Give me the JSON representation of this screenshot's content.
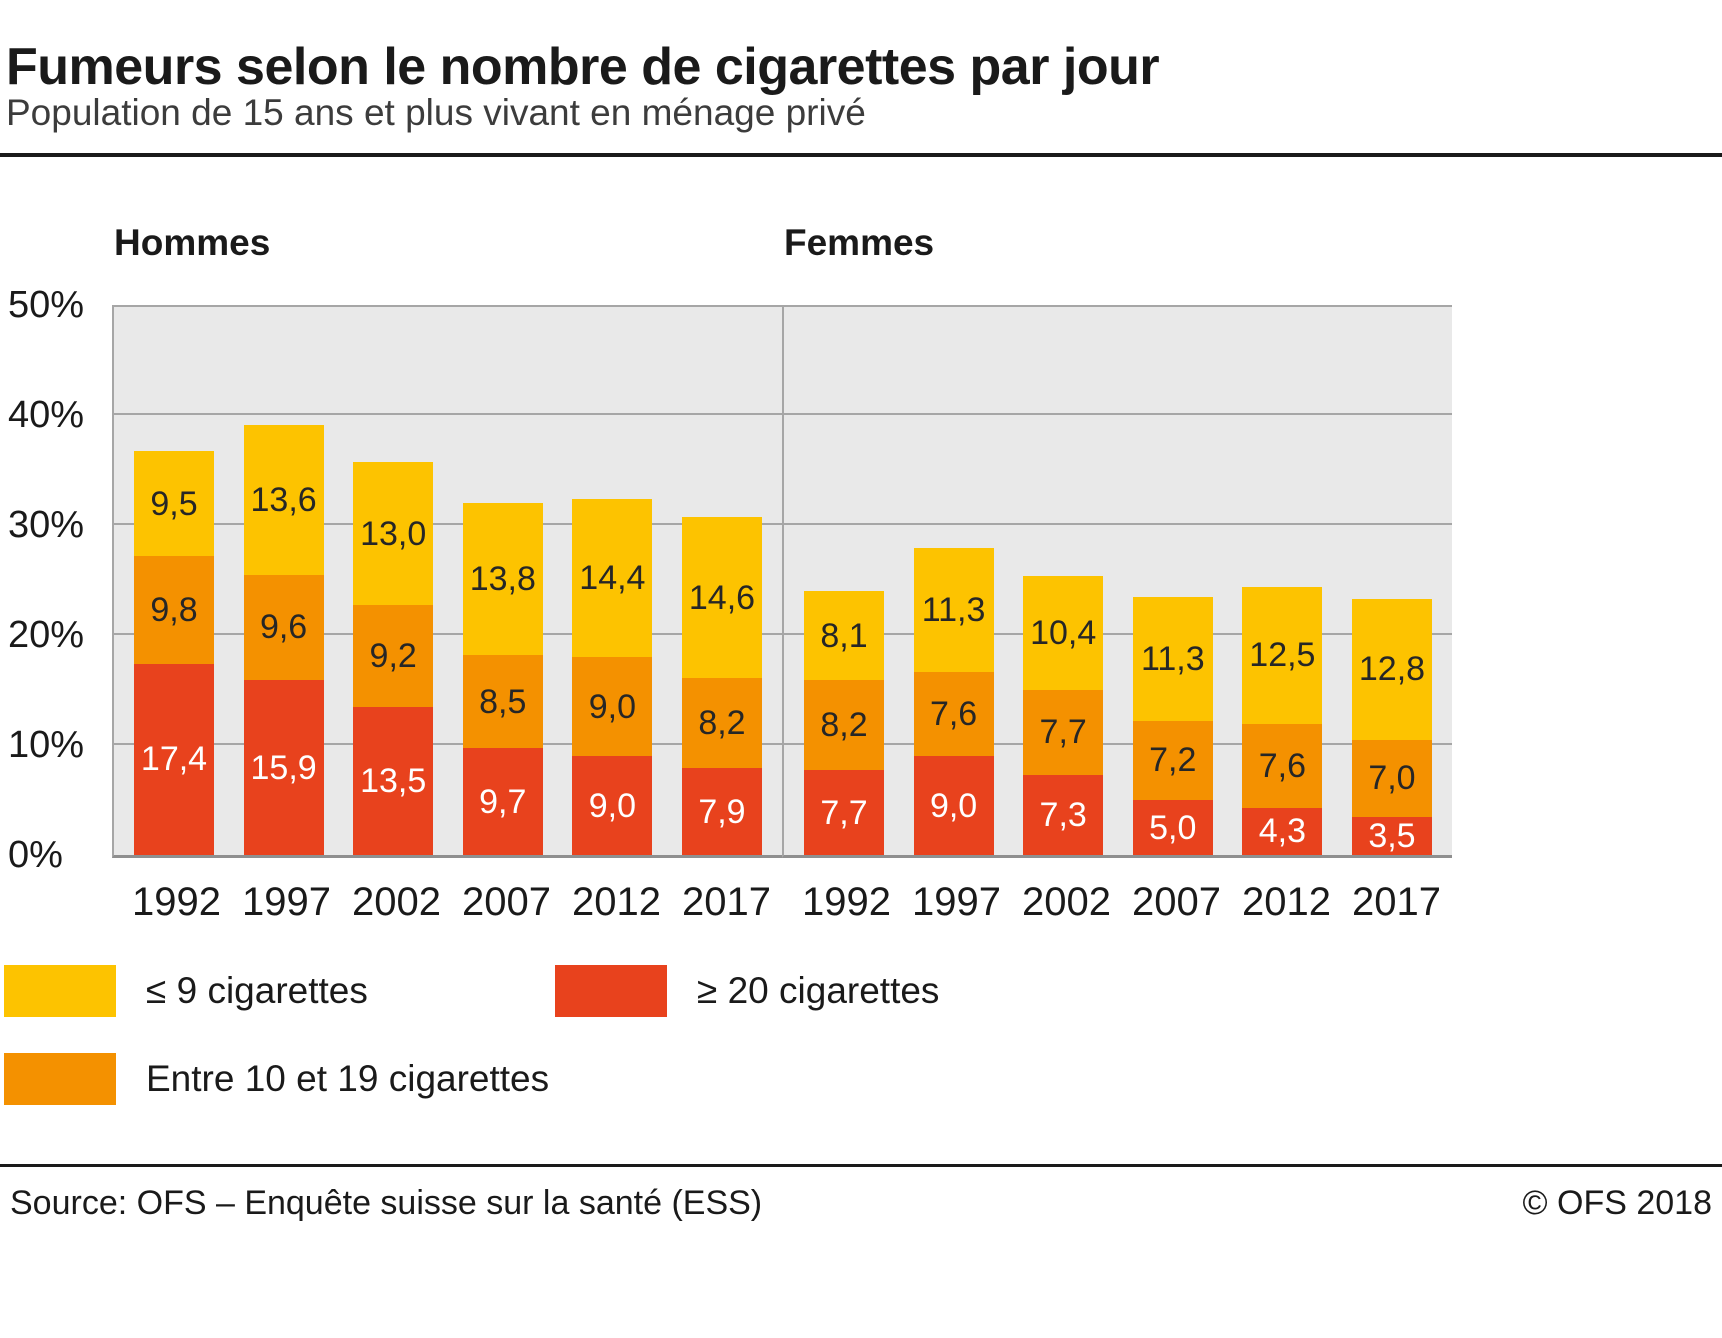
{
  "title": "Fumeurs selon le nombre de cigarettes par jour",
  "subtitle": "Population de 15 ans et plus vivant en ménage privé",
  "colors": {
    "yellow": "#fdc300",
    "orange": "#f49100",
    "red": "#e8421d",
    "plot_bg": "#e9e9e9",
    "gridline": "#a6a6a6",
    "axis": "#8f8f8f"
  },
  "legend": [
    {
      "label": "≤ 9 cigarettes",
      "color": "yellow"
    },
    {
      "label": "≥ 20 cigarettes",
      "color": "red"
    },
    {
      "label": "Entre 10 et 19 cigarettes",
      "color": "orange"
    }
  ],
  "chart_data": [
    {
      "type": "bar",
      "stacked": true,
      "title": "Hommes",
      "categories": [
        "1992",
        "1997",
        "2002",
        "2007",
        "2012",
        "2017"
      ],
      "series": [
        {
          "name": "≥ 20 cigarettes",
          "color": "red",
          "values": [
            17.4,
            15.9,
            13.5,
            9.7,
            9.0,
            7.9
          ]
        },
        {
          "name": "Entre 10 et 19 cigarettes",
          "color": "orange",
          "values": [
            9.8,
            9.6,
            9.2,
            8.5,
            9.0,
            8.2
          ]
        },
        {
          "name": "≤ 9 cigarettes",
          "color": "yellow",
          "values": [
            9.5,
            13.6,
            13.0,
            13.8,
            14.4,
            14.6
          ]
        }
      ],
      "ylim": [
        0,
        50
      ],
      "yticks": [
        "0%",
        "10%",
        "20%",
        "30%",
        "40%",
        "50%"
      ],
      "grid": true,
      "value_labels": true
    },
    {
      "type": "bar",
      "stacked": true,
      "title": "Femmes",
      "categories": [
        "1992",
        "1997",
        "2002",
        "2007",
        "2012",
        "2017"
      ],
      "series": [
        {
          "name": "≥ 20 cigarettes",
          "color": "red",
          "values": [
            7.7,
            9.0,
            7.3,
            5.0,
            4.3,
            3.5
          ]
        },
        {
          "name": "Entre 10 et 19 cigarettes",
          "color": "orange",
          "values": [
            8.2,
            7.6,
            7.7,
            7.2,
            7.6,
            7.0
          ]
        },
        {
          "name": "≤ 9 cigarettes",
          "color": "yellow",
          "values": [
            8.1,
            11.3,
            10.4,
            11.3,
            12.5,
            12.8
          ]
        }
      ],
      "ylim": [
        0,
        50
      ],
      "yticks": [
        "0%",
        "10%",
        "20%",
        "30%",
        "40%",
        "50%"
      ],
      "grid": true,
      "value_labels": true
    }
  ],
  "footer": {
    "source": "Source: OFS – Enquête suisse sur la santé (ESS)",
    "copyright": "© OFS 2018"
  }
}
